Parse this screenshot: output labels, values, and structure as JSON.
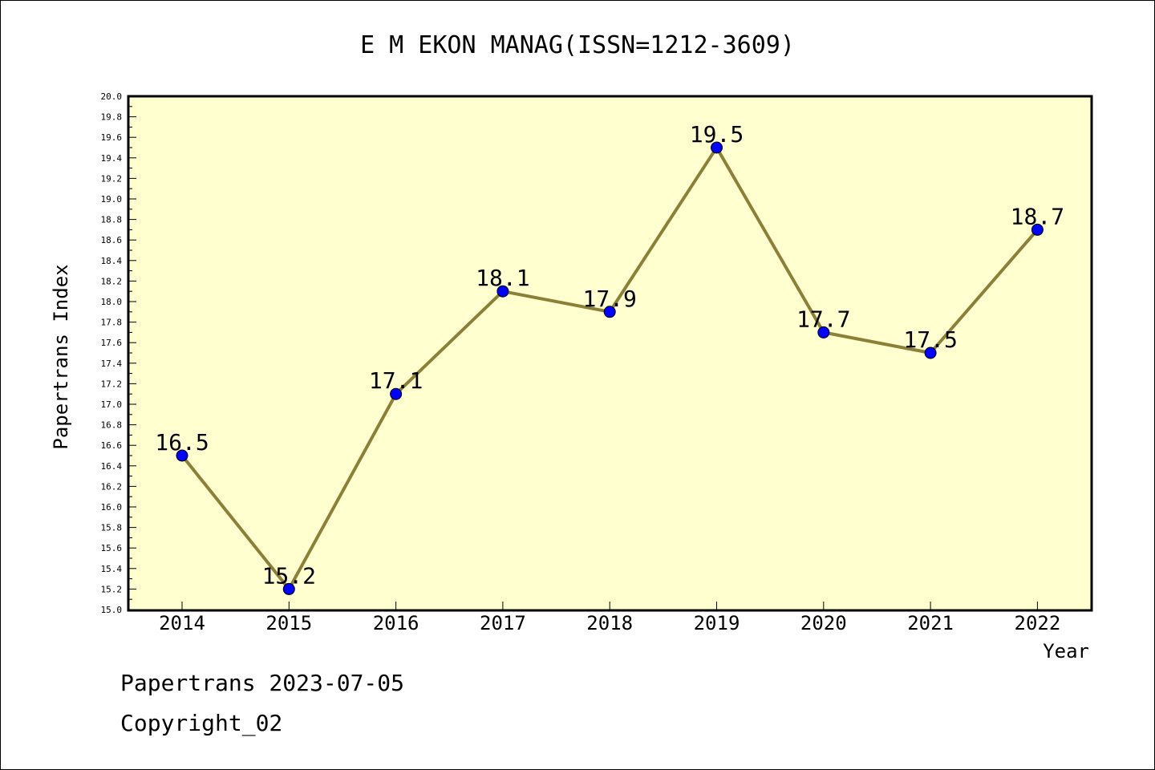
{
  "chart_data": {
    "type": "line",
    "title": "E M EKON MANAG(ISSN=1212-3609)",
    "xlabel": "Year",
    "ylabel": "Papertrans Index",
    "categories": [
      "2014",
      "2015",
      "2016",
      "2017",
      "2018",
      "2019",
      "2020",
      "2021",
      "2022"
    ],
    "series": [
      {
        "values": [
          16.5,
          15.2,
          17.1,
          18.1,
          17.9,
          19.5,
          17.7,
          17.5,
          18.7
        ]
      }
    ],
    "data_labels": [
      "16.5",
      "15.2",
      "17.1",
      "18.1",
      "17.9",
      "19.5",
      "17.7",
      "17.5",
      "18.7"
    ],
    "ylim": [
      15.0,
      20.0
    ],
    "y_ticks": [
      "15.0",
      "15.2",
      "15.4",
      "15.6",
      "15.8",
      "16.0",
      "16.2",
      "16.4",
      "16.6",
      "16.8",
      "17.0",
      "17.2",
      "17.4",
      "17.6",
      "17.8",
      "18.0",
      "18.2",
      "18.4",
      "18.6",
      "18.8",
      "19.0",
      "19.2",
      "19.4",
      "19.6",
      "19.8",
      "20.0"
    ],
    "grid": false,
    "legend": "none",
    "colors": {
      "plot_background": "#ffffd0",
      "line": "#8b8035",
      "marker": "#0000ff"
    }
  },
  "footer": {
    "date_text": "Papertrans 2023-07-05",
    "copyright_text": "Copyright_02"
  }
}
